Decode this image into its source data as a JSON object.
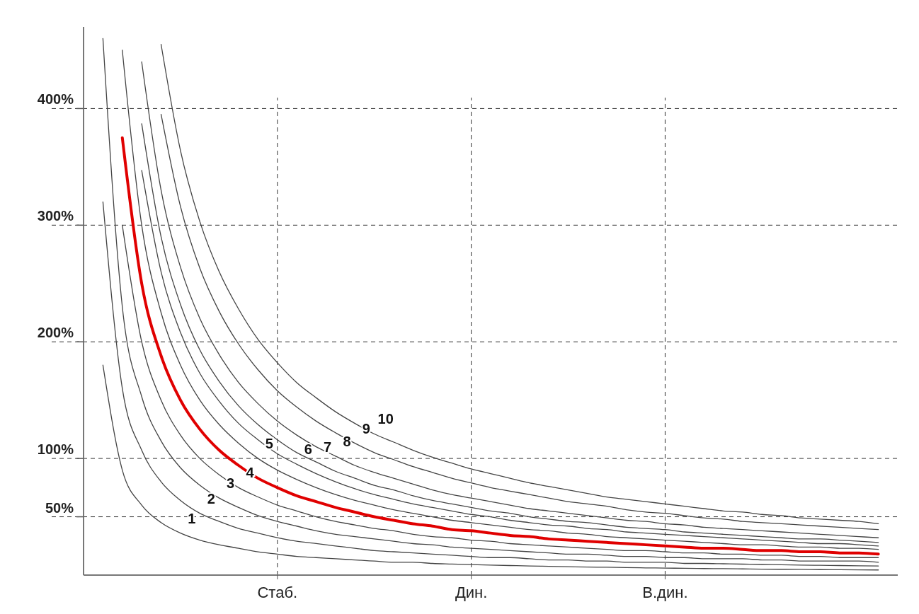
{
  "chart_data": {
    "type": "line",
    "categories": [
      null,
      null,
      null,
      null,
      null,
      null,
      null,
      null,
      null,
      null,
      "Стаб.",
      null,
      null,
      null,
      null,
      null,
      null,
      null,
      null,
      null,
      "Дин.",
      null,
      null,
      null,
      null,
      null,
      null,
      null,
      null,
      null,
      "В.дин.",
      null,
      null,
      null,
      null,
      null,
      null,
      null,
      null,
      null,
      null,
      null
    ],
    "ylim": [
      0,
      470
    ],
    "yticks": [
      {
        "value": 50,
        "label": "50%"
      },
      {
        "value": 100,
        "label": "100%"
      },
      {
        "value": 200,
        "label": "200%"
      },
      {
        "value": 300,
        "label": "300%"
      },
      {
        "value": 400,
        "label": "400%"
      }
    ],
    "marker": "none",
    "line_style": "solid",
    "series": [
      {
        "color": "#444444",
        "values": [
          null,
          180,
          90,
          60,
          45,
          36,
          30,
          26,
          23,
          20,
          18,
          16,
          15,
          14,
          13,
          12,
          11,
          11,
          10,
          9.5,
          9,
          8.6,
          8.2,
          7.8,
          7.5,
          7.2,
          6.9,
          6.7,
          6.4,
          6.2,
          6,
          5.8,
          5.6,
          5.5,
          5.3,
          5.1,
          5,
          4.9,
          4.7,
          4.6,
          4.5,
          4.4
        ]
      },
      {
        "color": "#444444",
        "values": [
          null,
          320,
          160,
          107,
          80,
          64,
          53,
          46,
          40,
          36,
          32,
          29,
          27,
          25,
          23,
          21,
          20,
          19,
          18,
          17,
          16,
          15,
          15,
          14,
          13,
          13,
          12,
          12,
          11,
          11,
          11,
          10,
          10,
          9.7,
          9.4,
          9.1,
          8.9,
          8.6,
          8.4,
          8.2,
          8,
          7.8
        ]
      },
      {
        "color": "#444444",
        "values": [
          null,
          460,
          230,
          153,
          115,
          92,
          77,
          66,
          58,
          51,
          46,
          42,
          38,
          35,
          33,
          31,
          29,
          27,
          26,
          24,
          23,
          22,
          21,
          20,
          19,
          18,
          18,
          17,
          16,
          16,
          15,
          15,
          14,
          14,
          14,
          13,
          13,
          12,
          12,
          12,
          12,
          11
        ]
      },
      {
        "color": "#444444",
        "values": [
          null,
          null,
          300,
          200,
          150,
          120,
          100,
          86,
          75,
          67,
          60,
          55,
          50,
          46,
          43,
          40,
          38,
          35,
          33,
          32,
          30,
          29,
          27,
          26,
          25,
          24,
          23,
          22,
          21,
          21,
          20,
          19,
          19,
          18,
          18,
          17,
          17,
          16,
          16,
          15,
          15,
          15
        ]
      },
      {
        "color": "#e00000",
        "values": [
          null,
          null,
          375,
          250,
          188,
          150,
          125,
          107,
          94,
          83,
          75,
          68,
          63,
          58,
          54,
          50,
          47,
          44,
          42,
          39,
          38,
          36,
          34,
          33,
          31,
          30,
          29,
          28,
          27,
          26,
          25,
          24,
          23,
          23,
          22,
          21,
          21,
          20,
          20,
          19,
          19,
          18
        ]
      },
      {
        "color": "#444444",
        "values": [
          null,
          null,
          450,
          300,
          225,
          180,
          150,
          129,
          113,
          100,
          90,
          82,
          75,
          69,
          64,
          60,
          56,
          53,
          50,
          47,
          45,
          43,
          41,
          39,
          38,
          36,
          35,
          33,
          32,
          31,
          30,
          29,
          28,
          27,
          26,
          26,
          25,
          24,
          24,
          23,
          23,
          22
        ]
      },
      {
        "color": "#444444",
        "values": [
          null,
          null,
          null,
          347,
          260,
          208,
          173,
          149,
          130,
          116,
          104,
          95,
          87,
          80,
          74,
          69,
          65,
          61,
          58,
          55,
          52,
          50,
          47,
          45,
          43,
          42,
          40,
          39,
          37,
          36,
          35,
          34,
          33,
          32,
          31,
          30,
          29,
          28,
          27,
          27,
          26,
          25
        ]
      },
      {
        "color": "#444444",
        "values": [
          null,
          null,
          null,
          387,
          290,
          232,
          193,
          166,
          145,
          129,
          116,
          105,
          97,
          89,
          83,
          77,
          73,
          68,
          64,
          61,
          58,
          55,
          53,
          50,
          48,
          46,
          45,
          43,
          41,
          40,
          39,
          37,
          36,
          35,
          34,
          33,
          32,
          31,
          31,
          30,
          29,
          28
        ]
      },
      {
        "color": "#444444",
        "values": [
          null,
          null,
          null,
          440,
          330,
          264,
          220,
          189,
          165,
          147,
          132,
          120,
          110,
          102,
          94,
          88,
          83,
          78,
          73,
          69,
          66,
          63,
          60,
          57,
          55,
          53,
          51,
          49,
          47,
          46,
          44,
          43,
          41,
          40,
          39,
          38,
          37,
          36,
          35,
          34,
          33,
          32
        ]
      },
      {
        "color": "#444444",
        "values": [
          null,
          null,
          null,
          null,
          395,
          316,
          263,
          226,
          198,
          176,
          158,
          144,
          132,
          122,
          113,
          105,
          99,
          93,
          88,
          83,
          79,
          75,
          72,
          69,
          66,
          63,
          61,
          59,
          56,
          54,
          53,
          51,
          49,
          48,
          46,
          45,
          44,
          43,
          42,
          41,
          40,
          39
        ]
      },
      {
        "color": "#444444",
        "values": [
          null,
          null,
          null,
          null,
          455,
          364,
          303,
          260,
          228,
          202,
          182,
          165,
          152,
          140,
          130,
          121,
          114,
          107,
          101,
          96,
          91,
          87,
          83,
          79,
          76,
          73,
          70,
          67,
          65,
          63,
          61,
          59,
          57,
          55,
          54,
          52,
          51,
          49,
          48,
          47,
          46,
          44
        ]
      }
    ],
    "ref_lines": [
      {
        "axis": "y",
        "value": 50,
        "line_style": "dashed"
      },
      {
        "axis": "y",
        "value": 100,
        "line_style": "dashed"
      },
      {
        "axis": "y",
        "value": 200,
        "line_style": "dashed"
      },
      {
        "axis": "y",
        "value": 300,
        "line_style": "dashed"
      },
      {
        "axis": "y",
        "value": 400,
        "line_style": "dashed"
      },
      {
        "axis": "x",
        "value": "Стаб.",
        "line_style": "dashed"
      },
      {
        "axis": "x",
        "value": "Дин.",
        "line_style": "dashed"
      },
      {
        "axis": "x",
        "value": "В.дин.",
        "line_style": "dashed"
      }
    ],
    "annotations": [
      "1",
      "2",
      "3",
      "4",
      "5",
      "6",
      "7",
      "8",
      "9",
      "10"
    ]
  }
}
